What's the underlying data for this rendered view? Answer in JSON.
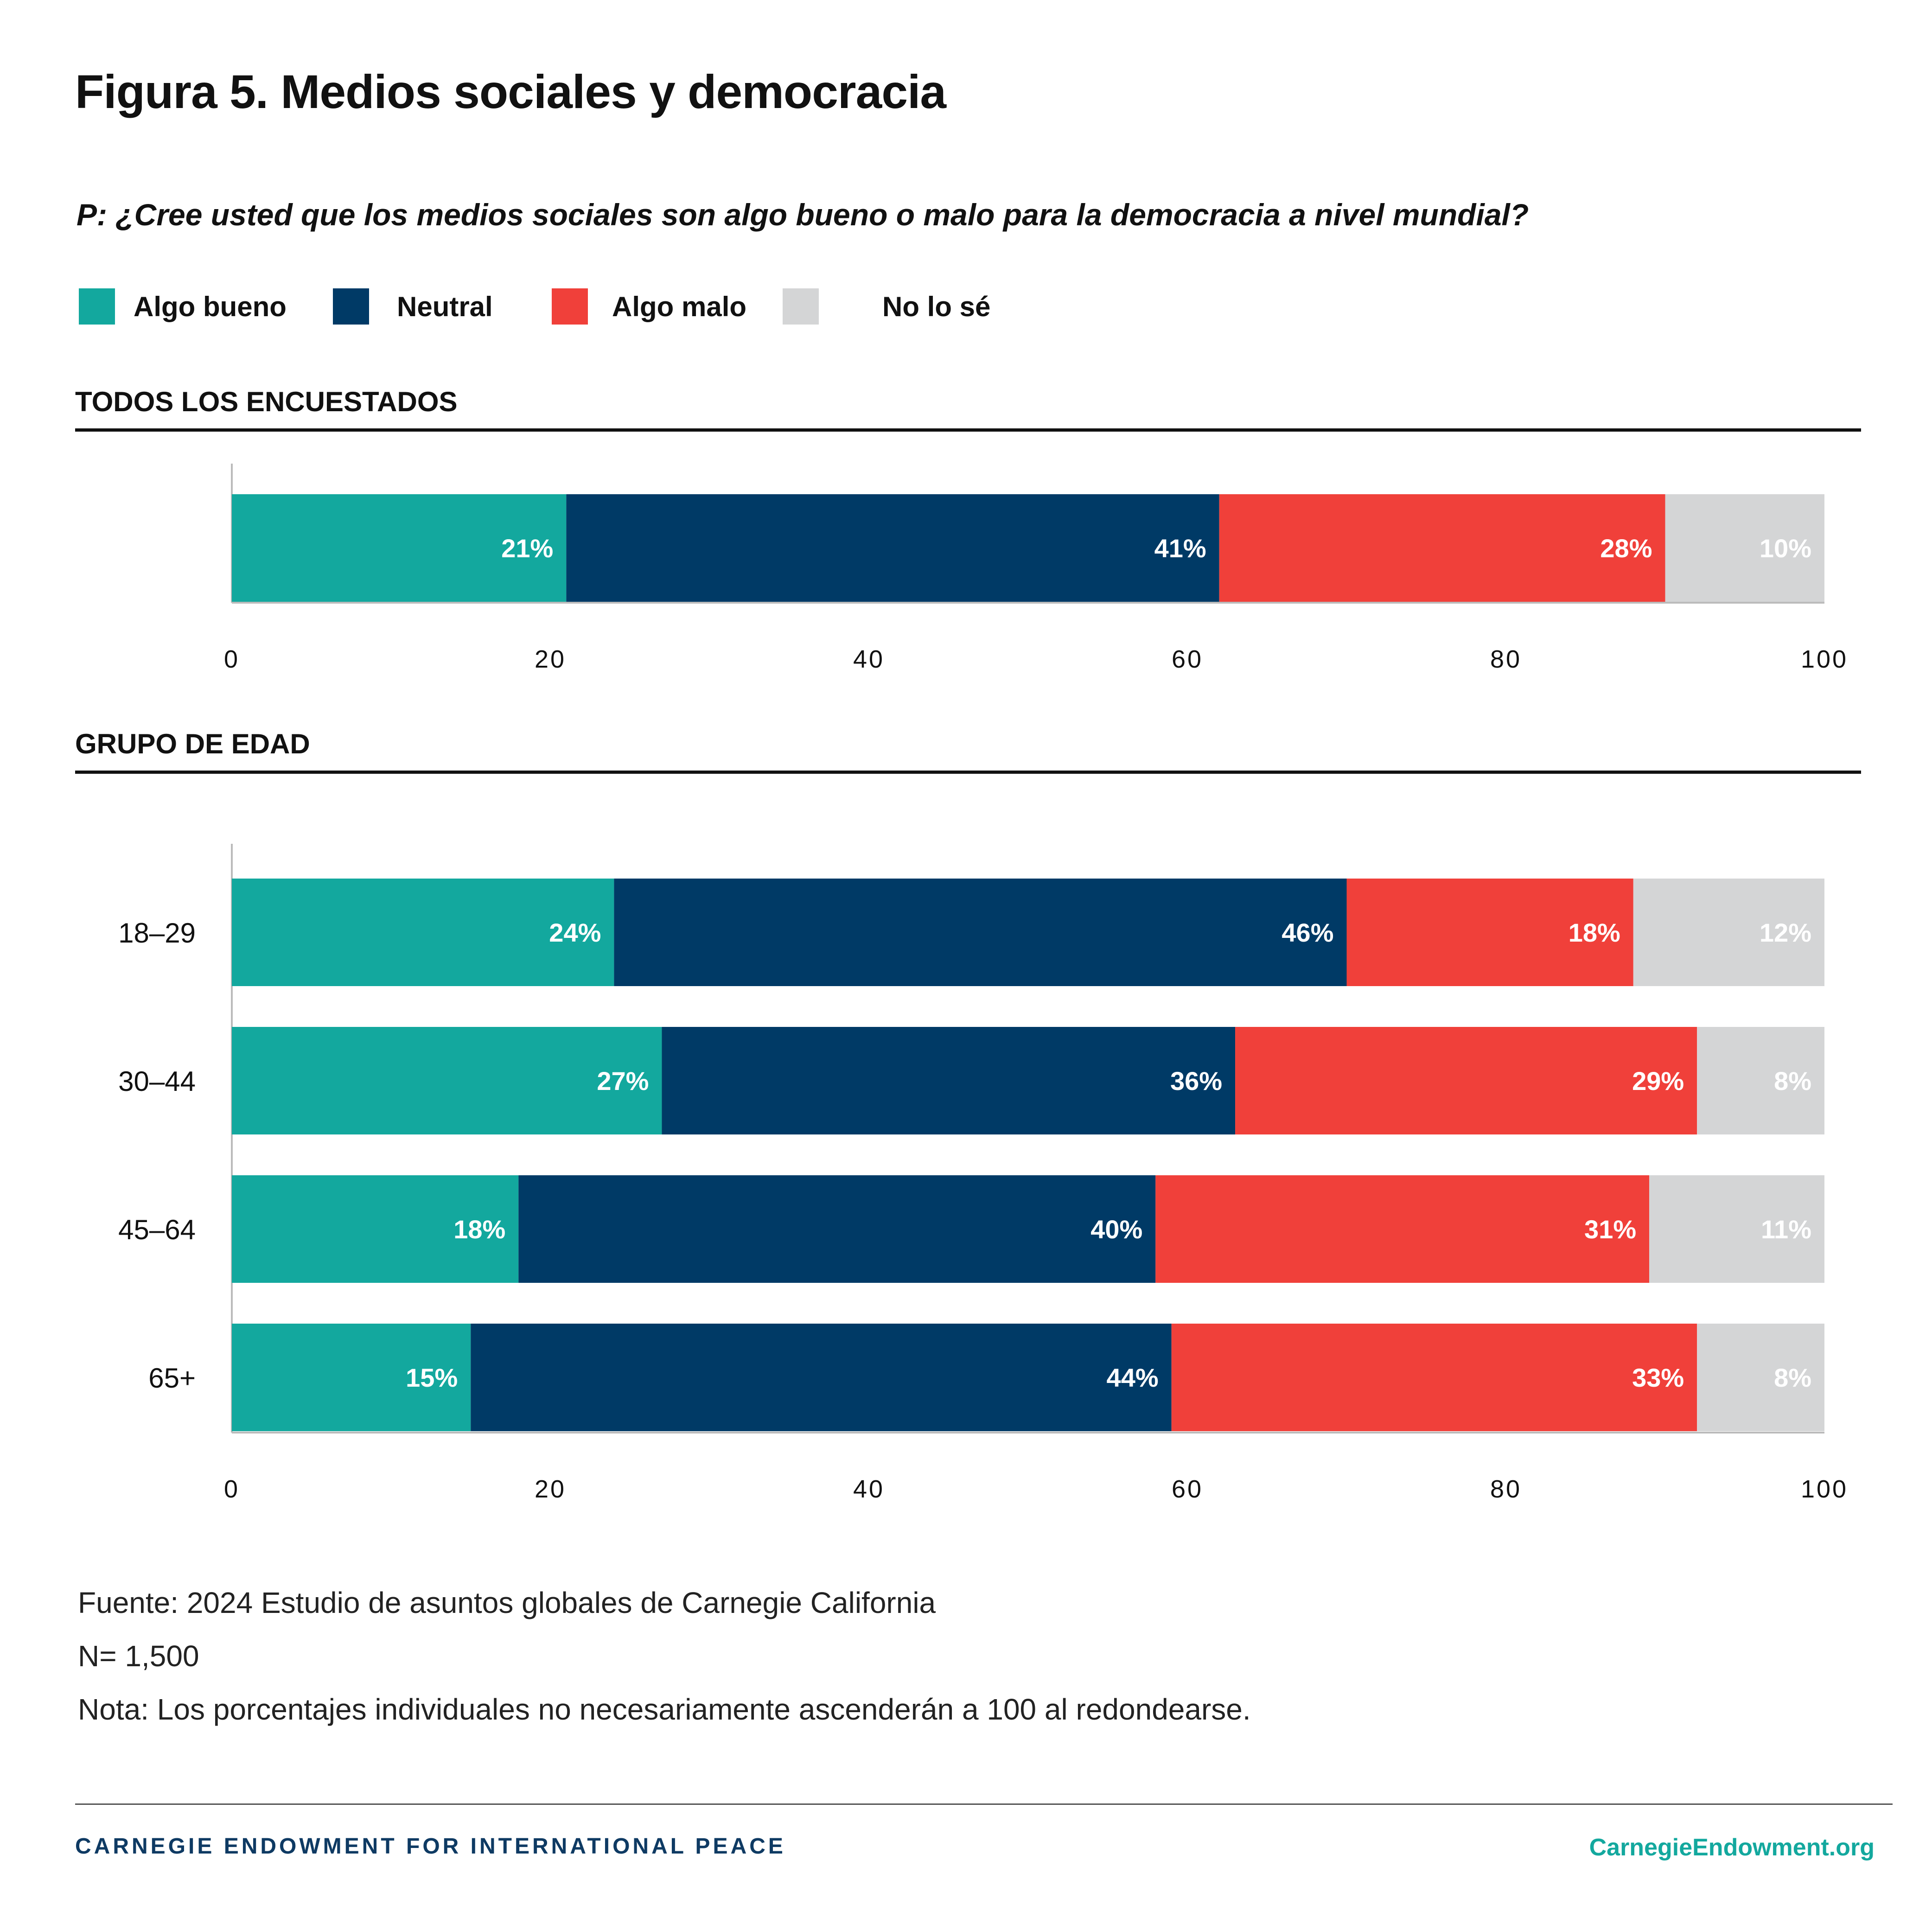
{
  "title": "Figura 5. Medios sociales y democracia",
  "question": "P: ¿Cree usted que los medios sociales son algo bueno o malo para la democracia a nivel mundial?",
  "colors": {
    "algo_bueno": "#13a89e",
    "neutral": "#003a66",
    "algo_malo": "#f0403a",
    "no_lo_se": "#d4d5d6"
  },
  "legend": [
    {
      "label": "Algo bueno",
      "color": "#13a89e"
    },
    {
      "label": "Neutral",
      "color": "#003a66"
    },
    {
      "label": "Algo malo",
      "color": "#f0403a"
    },
    {
      "label": "No lo sé",
      "color": "#d4d5d6"
    }
  ],
  "chart_data": [
    {
      "type": "bar",
      "orientation": "horizontal",
      "stacked": true,
      "title": "TODOS LOS ENCUESTADOS",
      "categories": [
        ""
      ],
      "series": [
        {
          "name": "Algo bueno",
          "values": [
            21
          ],
          "labels": [
            "21%"
          ]
        },
        {
          "name": "Neutral",
          "values": [
            41
          ],
          "labels": [
            "41%"
          ]
        },
        {
          "name": "Algo malo",
          "values": [
            28
          ],
          "labels": [
            "28%"
          ]
        },
        {
          "name": "No lo sé",
          "values": [
            10
          ],
          "labels": [
            "10%"
          ]
        }
      ],
      "xlim": [
        0,
        100
      ],
      "xticks": [
        "0",
        "20",
        "40",
        "60",
        "80",
        "100"
      ],
      "grid": false
    },
    {
      "type": "bar",
      "orientation": "horizontal",
      "stacked": true,
      "title": "GRUPO DE EDAD",
      "categories": [
        "18–29",
        "30–44",
        "45–64",
        "65+"
      ],
      "series": [
        {
          "name": "Algo bueno",
          "values": [
            24,
            27,
            18,
            15
          ],
          "labels": [
            "24%",
            "27%",
            "18%",
            "15%"
          ]
        },
        {
          "name": "Neutral",
          "values": [
            46,
            36,
            40,
            44
          ],
          "labels": [
            "46%",
            "36%",
            "40%",
            "44%"
          ]
        },
        {
          "name": "Algo malo",
          "values": [
            18,
            29,
            31,
            33
          ],
          "labels": [
            "18%",
            "29%",
            "31%",
            "33%"
          ]
        },
        {
          "name": "No lo sé",
          "values": [
            12,
            8,
            11,
            8
          ],
          "labels": [
            "12%",
            "8%",
            "11%",
            "8%"
          ]
        }
      ],
      "xlim": [
        0,
        100
      ],
      "xticks": [
        "0",
        "20",
        "40",
        "60",
        "80",
        "100"
      ],
      "grid": false
    }
  ],
  "source": {
    "line1": "Fuente: 2024 Estudio de asuntos globales de Carnegie California",
    "line2": "N= 1,500",
    "line3": "Nota: Los porcentajes individuales no necesariamente ascenderán a 100 al redondearse."
  },
  "footer": {
    "org": "CARNEGIE ENDOWMENT FOR INTERNATIONAL PEACE",
    "url": "CarnegieEndowment.org"
  }
}
